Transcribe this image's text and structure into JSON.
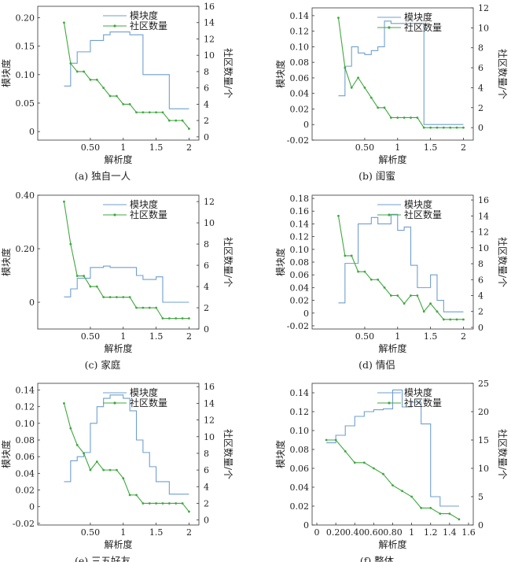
{
  "chart_data": [
    {
      "type": "line",
      "caption": "(a) 独自一人",
      "xlabel": "解析度",
      "ylabel": "模块度",
      "y2label": "社区数量/个",
      "xticks": [
        0.5,
        1.0,
        1.5,
        2.0
      ],
      "yticks": [
        0,
        0.05,
        0.1,
        0.15,
        0.2
      ],
      "y2ticks": [
        0,
        2,
        4,
        6,
        8,
        10,
        12,
        14,
        16
      ],
      "xlim": [
        -0.3,
        2.15
      ],
      "ylim": [
        -0.015,
        0.22
      ],
      "y2lim": [
        -0.4,
        16
      ],
      "legend_position": "top-right",
      "series": [
        {
          "name": "模块度",
          "axis": "left",
          "style": "step",
          "color": "#6f9fd0",
          "x": [
            0.1,
            0.2,
            0.3,
            0.4,
            0.5,
            0.6,
            0.7,
            0.8,
            0.9,
            1.0,
            1.1,
            1.2,
            1.3,
            1.4,
            1.5,
            1.6,
            1.7,
            1.8,
            1.9,
            2.0
          ],
          "y": [
            0.08,
            0.12,
            0.14,
            0.14,
            0.16,
            0.16,
            0.17,
            0.175,
            0.175,
            0.175,
            0.17,
            0.17,
            0.1,
            0.1,
            0.1,
            0.1,
            0.04,
            0.04,
            0.04,
            0.04
          ]
        },
        {
          "name": "社区数量",
          "axis": "right",
          "style": "line",
          "color": "#3fa83f",
          "x": [
            0.1,
            0.2,
            0.3,
            0.4,
            0.5,
            0.6,
            0.7,
            0.8,
            0.9,
            1.0,
            1.1,
            1.2,
            1.3,
            1.4,
            1.5,
            1.6,
            1.7,
            1.8,
            1.9,
            2.0
          ],
          "y": [
            14,
            9,
            8,
            8,
            7,
            7,
            6,
            5,
            5,
            4,
            4,
            3,
            3,
            3,
            3,
            3,
            2,
            2,
            2,
            1
          ]
        }
      ]
    },
    {
      "type": "line",
      "caption": "(b) 闺蜜",
      "xlabel": "解析度",
      "ylabel": "模块度",
      "y2label": "社区数量/个",
      "xticks": [
        0.5,
        1.0,
        1.5,
        2.0
      ],
      "yticks": [
        -0.02,
        0,
        0.02,
        0.04,
        0.06,
        0.08,
        0.1,
        0.12,
        0.14
      ],
      "y2ticks": [
        0,
        2,
        4,
        6,
        8,
        10,
        12
      ],
      "xlim": [
        -0.3,
        2.15
      ],
      "ylim": [
        -0.02,
        0.15
      ],
      "y2lim": [
        -1.25,
        12
      ],
      "legend_position": "top-right",
      "series": [
        {
          "name": "模块度",
          "axis": "left",
          "style": "step",
          "color": "#6f9fd0",
          "x": [
            0.1,
            0.2,
            0.3,
            0.4,
            0.5,
            0.6,
            0.7,
            0.8,
            0.9,
            1.0,
            1.1,
            1.2,
            1.3,
            1.4,
            1.5,
            1.6,
            1.7,
            1.8,
            1.9,
            2.0
          ],
          "y": [
            0.037,
            0.075,
            0.1,
            0.092,
            0.09,
            0.095,
            0.1,
            0.133,
            0.13,
            0.13,
            0.13,
            0.13,
            0.13,
            0.0,
            0.0,
            0.0,
            0.0,
            0.0,
            0.0,
            0.0
          ]
        },
        {
          "name": "社区数量",
          "axis": "right",
          "style": "line",
          "color": "#3fa83f",
          "x": [
            0.1,
            0.2,
            0.3,
            0.4,
            0.5,
            0.6,
            0.7,
            0.8,
            0.9,
            1.0,
            1.1,
            1.2,
            1.3,
            1.4,
            1.5,
            1.6,
            1.7,
            1.8,
            1.9,
            2.0
          ],
          "y": [
            11,
            6,
            4,
            5,
            4,
            3,
            2,
            2,
            1,
            1,
            1,
            1,
            1,
            0,
            0,
            0,
            0,
            0,
            0,
            0
          ]
        }
      ]
    },
    {
      "type": "line",
      "caption": "(c) 家庭",
      "xlabel": "解析度",
      "ylabel": "模块度",
      "y2label": "社区数量/个",
      "xticks": [
        0.5,
        1.0,
        1.5,
        2.0
      ],
      "yticks": [
        0,
        0.2,
        0.4
      ],
      "y2ticks": [
        0,
        2,
        4,
        6,
        8,
        10,
        12
      ],
      "xlim": [
        -0.3,
        2.15
      ],
      "ylim": [
        -0.1,
        0.4
      ],
      "y2lim": [
        0,
        12.6
      ],
      "legend_position": "top-right",
      "series": [
        {
          "name": "模块度",
          "axis": "left",
          "style": "step",
          "color": "#6f9fd0",
          "x": [
            0.1,
            0.2,
            0.3,
            0.4,
            0.5,
            0.6,
            0.7,
            0.8,
            0.9,
            1.0,
            1.1,
            1.2,
            1.3,
            1.4,
            1.5,
            1.6,
            1.7,
            1.8,
            1.9,
            2.0
          ],
          "y": [
            0.02,
            0.05,
            0.09,
            0.09,
            0.13,
            0.13,
            0.135,
            0.13,
            0.13,
            0.13,
            0.13,
            0.1,
            0.085,
            0.085,
            0.095,
            0.0,
            0.0,
            0.0,
            0.0,
            0.0
          ]
        },
        {
          "name": "社区数量",
          "axis": "right",
          "style": "line",
          "color": "#3fa83f",
          "x": [
            0.1,
            0.2,
            0.3,
            0.4,
            0.5,
            0.6,
            0.7,
            0.8,
            0.9,
            1.0,
            1.1,
            1.2,
            1.3,
            1.4,
            1.5,
            1.6,
            1.7,
            1.8,
            1.9,
            2.0
          ],
          "y": [
            12,
            8,
            5,
            5,
            4,
            4,
            3,
            3,
            3,
            3,
            3,
            2,
            2,
            2,
            2,
            1,
            1,
            1,
            1,
            1
          ]
        }
      ]
    },
    {
      "type": "line",
      "caption": "(d) 情侣",
      "xlabel": "解析度",
      "ylabel": "模块度",
      "y2label": "社区数量/个",
      "xticks": [
        0.5,
        1.0,
        1.5,
        2.0
      ],
      "yticks": [
        -0.02,
        0,
        0.02,
        0.04,
        0.06,
        0.08,
        0.1,
        0.12,
        0.14,
        0.16,
        0.18
      ],
      "y2ticks": [
        0,
        2,
        4,
        6,
        8,
        10,
        12,
        14,
        16
      ],
      "xlim": [
        -0.3,
        2.15
      ],
      "ylim": [
        -0.025,
        0.185
      ],
      "y2lim": [
        -0.2,
        16.6
      ],
      "legend_position": "top-right",
      "series": [
        {
          "name": "模块度",
          "axis": "left",
          "style": "step",
          "color": "#6f9fd0",
          "x": [
            0.1,
            0.2,
            0.3,
            0.4,
            0.5,
            0.6,
            0.7,
            0.8,
            0.9,
            1.0,
            1.1,
            1.2,
            1.3,
            1.4,
            1.5,
            1.6,
            1.7,
            1.8,
            1.9,
            2.0
          ],
          "y": [
            0.016,
            0.078,
            0.078,
            0.14,
            0.14,
            0.15,
            0.14,
            0.14,
            0.155,
            0.13,
            0.135,
            0.075,
            0.04,
            0.04,
            0.06,
            0.02,
            0.002,
            0.002,
            0.002,
            0.002
          ]
        },
        {
          "name": "社区数量",
          "axis": "right",
          "style": "line",
          "color": "#3fa83f",
          "x": [
            0.1,
            0.2,
            0.3,
            0.4,
            0.5,
            0.6,
            0.7,
            0.8,
            0.9,
            1.0,
            1.1,
            1.2,
            1.3,
            1.4,
            1.5,
            1.6,
            1.7,
            1.8,
            1.9,
            2.0
          ],
          "y": [
            14,
            9,
            9,
            7,
            7,
            6,
            6,
            5,
            4,
            4,
            3,
            4,
            4,
            2,
            3,
            2,
            1,
            1,
            1,
            1
          ]
        }
      ]
    },
    {
      "type": "line",
      "caption": "(e) 三五好友",
      "xlabel": "解析度",
      "ylabel": "模块度",
      "y2label": "社区数量/个",
      "xticks": [
        0.5,
        1.0,
        1.5,
        2.0
      ],
      "yticks": [
        -0.02,
        0,
        0.02,
        0.04,
        0.06,
        0.08,
        0.1,
        0.12,
        0.14
      ],
      "y2ticks": [
        0,
        2,
        4,
        6,
        8,
        10,
        12,
        14,
        16
      ],
      "xlim": [
        -0.3,
        2.15
      ],
      "ylim": [
        -0.022,
        0.148
      ],
      "y2lim": [
        -0.6,
        16.4
      ],
      "legend_position": "top-right",
      "series": [
        {
          "name": "模块度",
          "axis": "left",
          "style": "step",
          "color": "#6f9fd0",
          "x": [
            0.1,
            0.2,
            0.3,
            0.4,
            0.5,
            0.6,
            0.7,
            0.8,
            0.9,
            1.0,
            1.1,
            1.2,
            1.3,
            1.4,
            1.5,
            1.6,
            1.7,
            1.8,
            1.9,
            2.0
          ],
          "y": [
            0.03,
            0.055,
            0.06,
            0.065,
            0.1,
            0.12,
            0.13,
            0.134,
            0.134,
            0.13,
            0.115,
            0.08,
            0.065,
            0.048,
            0.03,
            0.03,
            0.015,
            0.015,
            0.015,
            0.015
          ]
        },
        {
          "name": "社区数量",
          "axis": "right",
          "style": "line",
          "color": "#3fa83f",
          "x": [
            0.1,
            0.2,
            0.3,
            0.4,
            0.5,
            0.6,
            0.7,
            0.8,
            0.9,
            1.0,
            1.1,
            1.2,
            1.3,
            1.4,
            1.5,
            1.6,
            1.7,
            1.8,
            1.9,
            2.0
          ],
          "y": [
            14,
            11,
            9,
            8,
            6,
            7,
            6,
            6,
            6,
            5,
            3,
            3,
            2,
            2,
            2,
            2,
            2,
            2,
            2,
            1
          ]
        }
      ]
    },
    {
      "type": "line",
      "caption": "(f) 整体",
      "xlabel": "解析度",
      "ylabel": "模块度",
      "y2label": "社区数量/个",
      "xticks": [
        0,
        0.2,
        0.4,
        0.6,
        0.8,
        1.0,
        1.2,
        1.4,
        1.6
      ],
      "yticks": [
        0,
        0.02,
        0.04,
        0.06,
        0.08,
        0.1,
        0.12,
        0.14
      ],
      "y2ticks": [
        0,
        5,
        10,
        15,
        20,
        25
      ],
      "xlim": [
        -0.05,
        1.65
      ],
      "ylim": [
        0,
        0.15
      ],
      "y2lim": [
        0,
        25
      ],
      "legend_position": "top-right",
      "series": [
        {
          "name": "模块度",
          "axis": "left",
          "style": "step",
          "color": "#6f9fd0",
          "x": [
            0.1,
            0.2,
            0.3,
            0.4,
            0.5,
            0.6,
            0.7,
            0.8,
            0.9,
            1.0,
            1.1,
            1.2,
            1.3,
            1.4,
            1.5
          ],
          "y": [
            0.087,
            0.095,
            0.105,
            0.115,
            0.12,
            0.122,
            0.123,
            0.143,
            0.125,
            0.13,
            0.107,
            0.03,
            0.02,
            0.02,
            0.02
          ]
        },
        {
          "name": "社区数量",
          "axis": "right",
          "style": "line",
          "color": "#3fa83f",
          "x": [
            0.1,
            0.2,
            0.3,
            0.4,
            0.5,
            0.6,
            0.7,
            0.8,
            0.9,
            1.0,
            1.1,
            1.2,
            1.3,
            1.4,
            1.5
          ],
          "y": [
            15,
            15,
            13,
            11,
            11,
            10,
            9,
            7,
            6,
            5,
            3,
            3,
            2,
            2,
            1
          ]
        }
      ]
    }
  ]
}
